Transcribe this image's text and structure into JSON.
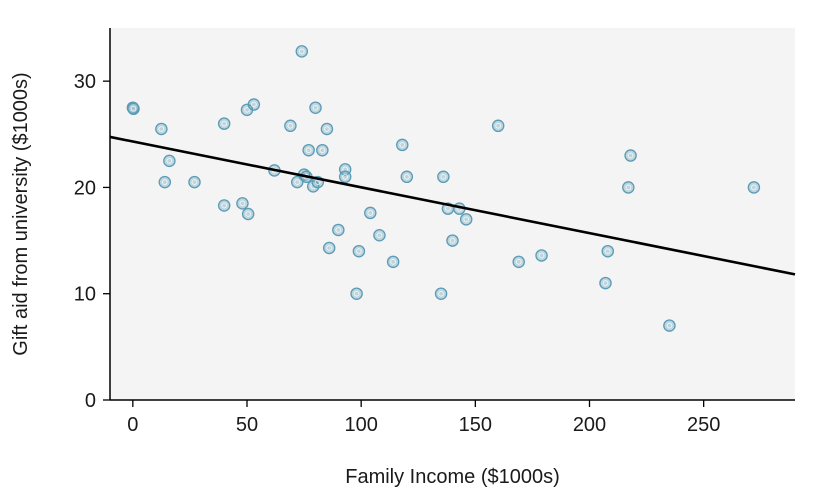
{
  "chart_data": {
    "type": "scatter",
    "title": "",
    "xlabel": "Family Income ($1000s)",
    "ylabel": "Gift aid from university ($1000s)",
    "xlim": [
      -10,
      290
    ],
    "ylim": [
      0,
      35
    ],
    "xticks": [
      0,
      50,
      100,
      150,
      200,
      250
    ],
    "yticks": [
      0,
      10,
      20,
      30
    ],
    "grid": false,
    "background": "#f4f4f4",
    "colors": {
      "point": "#5a9bb5",
      "line": "#000000"
    },
    "points": [
      {
        "x": 0.0,
        "y": 27.5
      },
      {
        "x": 0.3,
        "y": 27.4
      },
      {
        "x": 12.5,
        "y": 25.5
      },
      {
        "x": 14,
        "y": 20.5
      },
      {
        "x": 16,
        "y": 22.5
      },
      {
        "x": 27,
        "y": 20.5
      },
      {
        "x": 40,
        "y": 26.0
      },
      {
        "x": 40,
        "y": 18.3
      },
      {
        "x": 48,
        "y": 18.5
      },
      {
        "x": 50,
        "y": 27.3
      },
      {
        "x": 50.5,
        "y": 17.5
      },
      {
        "x": 53,
        "y": 27.8
      },
      {
        "x": 62,
        "y": 21.6
      },
      {
        "x": 69,
        "y": 25.8
      },
      {
        "x": 72,
        "y": 20.5
      },
      {
        "x": 74,
        "y": 32.8
      },
      {
        "x": 75,
        "y": 21.2
      },
      {
        "x": 76,
        "y": 21.0
      },
      {
        "x": 77,
        "y": 23.5
      },
      {
        "x": 79,
        "y": 20.1
      },
      {
        "x": 80,
        "y": 27.5
      },
      {
        "x": 81,
        "y": 20.5
      },
      {
        "x": 83,
        "y": 23.5
      },
      {
        "x": 85,
        "y": 25.5
      },
      {
        "x": 86,
        "y": 14.3
      },
      {
        "x": 90,
        "y": 16.0
      },
      {
        "x": 93,
        "y": 21.7
      },
      {
        "x": 93,
        "y": 21.0
      },
      {
        "x": 98,
        "y": 10.0
      },
      {
        "x": 99,
        "y": 14.0
      },
      {
        "x": 104,
        "y": 17.6
      },
      {
        "x": 108,
        "y": 15.5
      },
      {
        "x": 114,
        "y": 13.0
      },
      {
        "x": 118,
        "y": 24.0
      },
      {
        "x": 120,
        "y": 21.0
      },
      {
        "x": 135,
        "y": 10.0
      },
      {
        "x": 136,
        "y": 21.0
      },
      {
        "x": 138,
        "y": 18.0
      },
      {
        "x": 140,
        "y": 15.0
      },
      {
        "x": 143,
        "y": 18.0
      },
      {
        "x": 146,
        "y": 17.0
      },
      {
        "x": 160,
        "y": 25.8
      },
      {
        "x": 169,
        "y": 13.0
      },
      {
        "x": 179,
        "y": 13.6
      },
      {
        "x": 207,
        "y": 11.0
      },
      {
        "x": 208,
        "y": 14.0
      },
      {
        "x": 217,
        "y": 20.0
      },
      {
        "x": 218,
        "y": 23.0
      },
      {
        "x": 235,
        "y": 7.0
      },
      {
        "x": 272,
        "y": 20.0
      }
    ],
    "regression_line": {
      "intercept": 24.32,
      "slope": -0.0431
    }
  }
}
